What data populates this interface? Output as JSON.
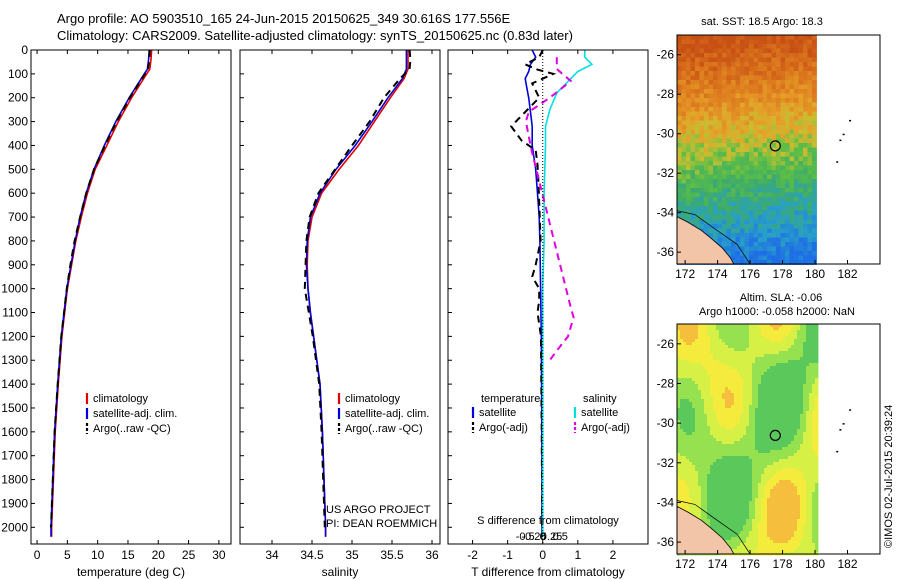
{
  "header": {
    "title_line1": "Argo profile: AO 5903510_165 24-Jun-2015 20150625_349 30.616S 177.556E",
    "title_line2": "Climatology: CARS2009. Satellite-adjusted climatology: synTS_20150625.nc (0.83d later)"
  },
  "colors": {
    "climatology": "#e00000",
    "satellite": "#0000dd",
    "argo": "#000000",
    "salinity_satellite": "#00e0e0",
    "salinity_argo": "#e000e0",
    "land": "#f2c4a8",
    "sea_no_data": "#ffffff"
  },
  "chart_data": [
    {
      "type": "line",
      "id": "temperature",
      "xlabel": "temperature (deg C)",
      "xlim": [
        -1,
        32
      ],
      "ylim": [
        2070,
        0
      ],
      "xticks": [
        0,
        5,
        10,
        15,
        20,
        25,
        30
      ],
      "xtick_labels": [
        "0",
        "5",
        "10",
        "15",
        "20",
        "25",
        "30"
      ],
      "yticks": [
        0,
        100,
        200,
        300,
        400,
        500,
        600,
        700,
        800,
        900,
        1000,
        1100,
        1200,
        1300,
        1400,
        1500,
        1600,
        1700,
        1800,
        1900,
        2000
      ],
      "ytick_labels": [
        "0",
        "100",
        "200",
        "300",
        "400",
        "500",
        "600",
        "700",
        "800",
        "900",
        "1000",
        "1100",
        "1200",
        "1300",
        "1400",
        "1500",
        "1600",
        "1700",
        "1800",
        "1900",
        "2000"
      ],
      "legend": [
        "climatology",
        "satellite-adj. clim.",
        "Argo(..raw -QC)"
      ],
      "series": [
        {
          "name": "climatology",
          "color": "#e00000",
          "dash": "",
          "depth": [
            0,
            40,
            80,
            120,
            200,
            300,
            400,
            500,
            600,
            700,
            800,
            900,
            1000,
            1200,
            1400,
            1600,
            1800,
            2000,
            2040
          ],
          "values": [
            18.9,
            18.8,
            18.6,
            17.6,
            15.6,
            13.4,
            11.5,
            9.6,
            8.3,
            7.3,
            6.4,
            5.7,
            5.0,
            4.1,
            3.5,
            3.0,
            2.7,
            2.4,
            2.4
          ]
        },
        {
          "name": "satellite-adj. clim.",
          "color": "#0000dd",
          "dash": "",
          "depth": [
            0,
            40,
            80,
            120,
            200,
            300,
            400,
            500,
            600,
            700,
            800,
            900,
            1000,
            1200,
            1400,
            1600,
            1800,
            2000,
            2040
          ],
          "values": [
            18.5,
            18.4,
            18.2,
            17.2,
            15.2,
            13.0,
            11.1,
            9.4,
            8.1,
            7.1,
            6.3,
            5.6,
            4.9,
            4.0,
            3.4,
            2.9,
            2.6,
            2.3,
            2.3
          ]
        },
        {
          "name": "Argo(..raw -QC)",
          "color": "#000000",
          "dash": "7,5",
          "depth": [
            0,
            40,
            80,
            120,
            200,
            300,
            400,
            500,
            600,
            700,
            800,
            900,
            1000,
            1200,
            1400,
            1600,
            1800,
            2000
          ],
          "values": [
            18.6,
            18.5,
            18.3,
            17.3,
            15.3,
            13.1,
            11.2,
            9.4,
            8.1,
            7.1,
            6.2,
            5.5,
            4.9,
            4.0,
            3.4,
            2.9,
            2.6,
            2.3
          ]
        }
      ]
    },
    {
      "type": "line",
      "id": "salinity",
      "xlabel": "salinity",
      "xlim": [
        33.6,
        36.1
      ],
      "ylim": [
        2070,
        0
      ],
      "xticks": [
        34,
        34.5,
        35,
        35.5,
        36
      ],
      "xtick_labels": [
        "34",
        "34.5",
        "35",
        "35.5",
        "36"
      ],
      "legend": [
        "climatology",
        "satellite-adj. clim.",
        "Argo(..raw -QC)"
      ],
      "annotation": [
        "US ARGO PROJECT",
        "PI: DEAN ROEMMICH"
      ],
      "series": [
        {
          "name": "climatology",
          "color": "#e00000",
          "dash": "",
          "depth": [
            0,
            40,
            80,
            120,
            200,
            300,
            400,
            500,
            600,
            700,
            800,
            900,
            1000,
            1100,
            1200,
            1300,
            1400,
            1600,
            1800,
            2000,
            2040
          ],
          "values": [
            35.7,
            35.7,
            35.7,
            35.65,
            35.48,
            35.28,
            35.08,
            34.84,
            34.62,
            34.5,
            34.45,
            34.44,
            34.45,
            34.48,
            34.52,
            34.56,
            34.6,
            34.63,
            34.65,
            34.67,
            34.67
          ]
        },
        {
          "name": "satellite-adj. clim.",
          "color": "#0000dd",
          "dash": "",
          "depth": [
            0,
            40,
            80,
            120,
            200,
            300,
            400,
            500,
            600,
            700,
            800,
            900,
            1000,
            1100,
            1200,
            1300,
            1400,
            1600,
            1800,
            2000,
            2040
          ],
          "values": [
            35.68,
            35.68,
            35.68,
            35.63,
            35.45,
            35.25,
            35.04,
            34.8,
            34.6,
            34.48,
            34.44,
            34.43,
            34.45,
            34.48,
            34.52,
            34.56,
            34.6,
            34.63,
            34.65,
            34.67,
            34.67
          ]
        },
        {
          "name": "Argo(..raw -QC)",
          "color": "#000000",
          "dash": "7,5",
          "depth": [
            0,
            40,
            80,
            120,
            200,
            300,
            400,
            500,
            600,
            700,
            800,
            900,
            1000,
            1100,
            1200,
            1300,
            1400,
            1600,
            1800,
            2000
          ],
          "values": [
            35.72,
            35.73,
            35.72,
            35.6,
            35.4,
            35.22,
            35.0,
            34.79,
            34.58,
            34.47,
            34.43,
            34.42,
            34.41,
            34.46,
            34.51,
            34.55,
            34.59,
            34.62,
            34.64,
            34.66
          ]
        }
      ]
    },
    {
      "type": "line",
      "id": "difference",
      "xlabel": "T difference from climatology",
      "xlim": [
        -2.7,
        3.0
      ],
      "ylim": [
        2070,
        0
      ],
      "xticks": [
        -2,
        -1,
        0,
        1,
        2
      ],
      "xtick_labels": [
        "-2",
        "-1",
        "0",
        "1",
        "2"
      ],
      "secondary_axis_label": "S difference from climatology",
      "secondary_tick_labels": [
        "-0.5",
        "-0.25",
        "0",
        "0.25",
        "0.5"
      ],
      "secondary_tick_values_T": [
        -2,
        -1,
        0,
        1,
        2
      ],
      "legend_titles": [
        "temperature",
        "salinity"
      ],
      "legend": [
        "satellite",
        "Argo(-adj)",
        "satellite",
        "Argo(-adj)"
      ],
      "series": [
        {
          "name": "satellite",
          "group": "temperature",
          "color": "#0000dd",
          "dash": "",
          "depth": [
            0,
            30,
            60,
            90,
            120,
            160,
            200,
            260,
            320,
            400,
            500,
            600,
            700,
            800,
            1000,
            1200,
            1500,
            1800,
            2040
          ],
          "values": [
            -0.3,
            -0.2,
            -0.35,
            -0.4,
            -0.5,
            -0.45,
            -0.4,
            -0.35,
            -0.3,
            -0.3,
            -0.2,
            -0.15,
            -0.1,
            -0.08,
            -0.06,
            -0.04,
            -0.03,
            -0.02,
            -0.02
          ]
        },
        {
          "name": "Argo(-adj)",
          "group": "temperature",
          "color": "#000000",
          "dash": "7,5",
          "depth": [
            0,
            30,
            60,
            80,
            100,
            140,
            200,
            260,
            320,
            380,
            420,
            480,
            560,
            640,
            720,
            800,
            900,
            950,
            1000,
            1050,
            1100,
            1200,
            1400,
            1600,
            1800,
            2000
          ],
          "values": [
            0.0,
            -0.1,
            -0.5,
            -0.2,
            0.3,
            -0.3,
            -0.1,
            -0.5,
            -0.9,
            -0.6,
            -0.2,
            -0.15,
            -0.12,
            -0.1,
            -0.08,
            -0.06,
            -0.2,
            -0.3,
            -0.1,
            -0.1,
            -0.15,
            -0.05,
            -0.04,
            -0.03,
            -0.02,
            -0.02
          ]
        },
        {
          "name": "satellite",
          "group": "salinity",
          "color": "#00e0e0",
          "dash": "",
          "depth": [
            0,
            30,
            60,
            90,
            120,
            180,
            250,
            320,
            400,
            600,
            800,
            1000,
            1200,
            1500,
            1800,
            2040
          ],
          "values": [
            0.3,
            0.3,
            0.35,
            0.25,
            0.2,
            0.1,
            0.05,
            0.02,
            0.02,
            0.01,
            0.01,
            0.0,
            0.0,
            0.0,
            0.0,
            0.0
          ]
        },
        {
          "name": "Argo(-adj)",
          "group": "salinity",
          "color": "#e000e0",
          "dash": "7,5",
          "depth": [
            30,
            80,
            130,
            200,
            260,
            300,
            360,
            420,
            1080,
            1120,
            1200,
            1260,
            1300
          ],
          "values": [
            0.1,
            0.1,
            0.2,
            0.05,
            -0.1,
            -0.12,
            -0.1,
            -0.08,
            0.2,
            0.22,
            0.18,
            0.1,
            0.05
          ]
        }
      ]
    },
    {
      "type": "heatmap",
      "id": "sst_map",
      "title": "sat. SST: 18.5 Argo: 18.3",
      "xlim": [
        171.5,
        184
      ],
      "ylim": [
        -36.6,
        -25
      ],
      "data_xlim": [
        171.5,
        180
      ],
      "xticks": [
        172,
        174,
        176,
        178,
        180,
        182
      ],
      "xtick_labels": [
        "172",
        "174",
        "176",
        "178",
        "180",
        "182"
      ],
      "yticks": [
        -26,
        -28,
        -30,
        -32,
        -34,
        -36
      ],
      "ytick_labels": [
        "-26",
        "-28",
        "-30",
        "-32",
        "-34",
        "-36"
      ],
      "marker": {
        "lon": 177.556,
        "lat": -30.616
      }
    },
    {
      "type": "heatmap",
      "id": "sla_map",
      "title": "Altim. SLA: -0.06",
      "subtitle": "Argo h1000: -0.058 h2000: NaN",
      "xlim": [
        171.5,
        184
      ],
      "ylim": [
        -36.6,
        -25
      ],
      "data_xlim": [
        171.5,
        180
      ],
      "xticks": [
        172,
        174,
        176,
        178,
        180,
        182
      ],
      "xtick_labels": [
        "172",
        "174",
        "176",
        "178",
        "180",
        "182"
      ],
      "yticks": [
        -26,
        -28,
        -30,
        -32,
        -34,
        -36
      ],
      "ytick_labels": [
        "-26",
        "-28",
        "-30",
        "-32",
        "-34",
        "-36"
      ],
      "marker": {
        "lon": 177.556,
        "lat": -30.616
      }
    }
  ],
  "footer": {
    "credit": "©IMOS 02-Jul-2015 20:39:24"
  }
}
